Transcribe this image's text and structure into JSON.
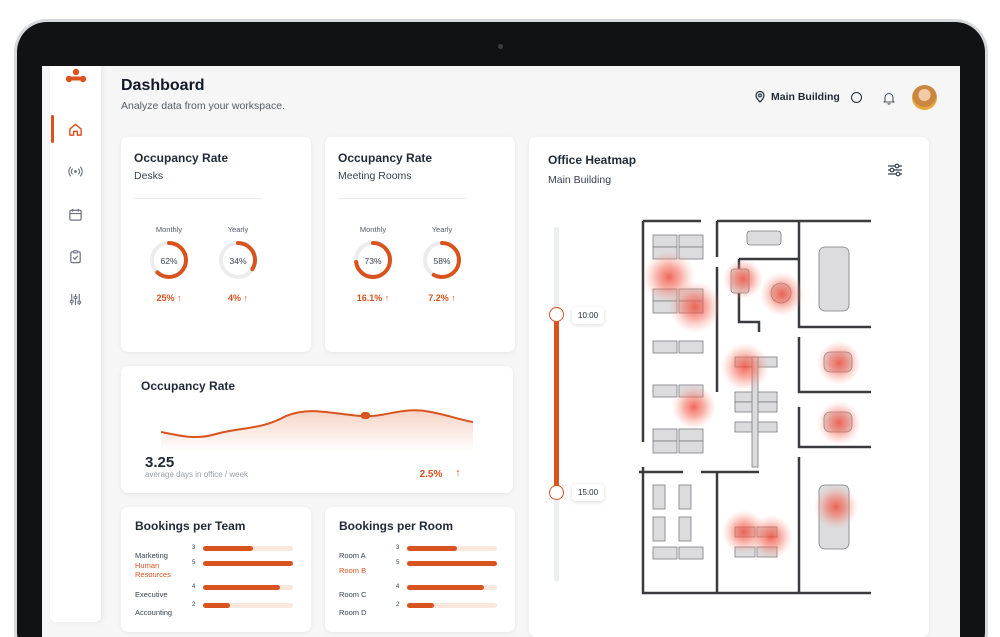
{
  "header": {
    "title": "Dashboard",
    "subtitle": "Analyze data from your workspace.",
    "building_selector": "Main Building"
  },
  "sidebar": {
    "items": [
      {
        "icon": "home-icon",
        "active": true
      },
      {
        "icon": "broadcast-icon",
        "active": false
      },
      {
        "icon": "calendar-icon",
        "active": false
      },
      {
        "icon": "clipboard-check-icon",
        "active": false
      },
      {
        "icon": "sliders-icon",
        "active": false
      }
    ]
  },
  "colors": {
    "accent": "#d9531e",
    "accent_light": "#fbe6dd"
  },
  "occupancy_desks": {
    "title": "Occupancy Rate",
    "subtitle": "Desks",
    "monthly": {
      "label": "Monthly",
      "value": "62%",
      "fraction": 0.62,
      "delta": "25%"
    },
    "yearly": {
      "label": "Yearly",
      "value": "34%",
      "fraction": 0.34,
      "delta": "4%"
    }
  },
  "occupancy_rooms": {
    "title": "Occupancy Rate",
    "subtitle": "Meeting Rooms",
    "monthly": {
      "label": "Monthly",
      "value": "73%",
      "fraction": 0.73,
      "delta": "16.1%"
    },
    "yearly": {
      "label": "Yearly",
      "value": "58%",
      "fraction": 0.58,
      "delta": "7.2%"
    }
  },
  "occupancy_trend": {
    "title": "Occupancy Rate",
    "value": "3.25",
    "caption": "average days in office / week",
    "delta": "2.5%"
  },
  "bookings_team": {
    "title": "Bookings per Team",
    "rows": [
      {
        "label": "Marketing",
        "count": "3",
        "fraction": 0.55,
        "highlight": false
      },
      {
        "label": "Human Resources",
        "count": "5",
        "fraction": 1.0,
        "highlight": true
      },
      {
        "label": "Executive",
        "count": "4",
        "fraction": 0.85,
        "highlight": false
      },
      {
        "label": "Accounting",
        "count": "2",
        "fraction": 0.3,
        "highlight": false
      }
    ]
  },
  "bookings_room": {
    "title": "Bookings per Room",
    "rows": [
      {
        "label": "Room A",
        "count": "3",
        "fraction": 0.55,
        "highlight": false
      },
      {
        "label": "Room B",
        "count": "5",
        "fraction": 1.0,
        "highlight": true
      },
      {
        "label": "Room C",
        "count": "4",
        "fraction": 0.85,
        "highlight": false
      },
      {
        "label": "Room D",
        "count": "2",
        "fraction": 0.3,
        "highlight": false
      }
    ]
  },
  "heatmap": {
    "title": "Office Heatmap",
    "subtitle": "Main Building",
    "time_start": "10:00",
    "time_end": "15:00"
  }
}
